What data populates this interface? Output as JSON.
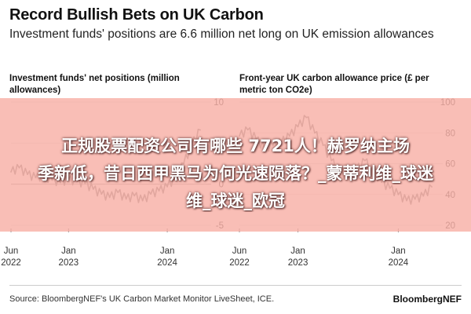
{
  "header": {
    "title": "Record Bullish Bets on UK Carbon",
    "subtitle": "Investment funds' positions are 6.6 million net long on UK emission allowances"
  },
  "chart_data": [
    {
      "type": "line",
      "title": "Investment funds' net positions (million allowances)",
      "ylim": [
        -5,
        10
      ],
      "yticks": [
        "10",
        "5",
        "0",
        "-5"
      ],
      "xticks": [
        {
          "line1": "Jun",
          "line2": "2022"
        },
        {
          "line1": "Jan",
          "line2": "2023"
        },
        {
          "line1": "Jan",
          "line2": "2024"
        }
      ],
      "color": "#7a7a7a",
      "x": [
        "2022-06",
        "2022-07",
        "2022-08",
        "2022-09",
        "2022-10",
        "2022-11",
        "2022-12",
        "2023-01",
        "2023-02",
        "2023-03",
        "2023-04",
        "2023-05",
        "2023-06",
        "2023-07",
        "2023-08",
        "2023-09",
        "2023-10",
        "2023-11",
        "2023-12",
        "2024-01",
        "2024-02",
        "2024-03",
        "2024-04",
        "2024-05"
      ],
      "values": [
        1.5,
        2.0,
        1.2,
        0.8,
        1.0,
        0.5,
        0.2,
        0.6,
        0.3,
        0.1,
        -0.6,
        -1.2,
        -1.6,
        -1.0,
        -1.8,
        -1.4,
        -2.0,
        -1.2,
        -0.8,
        -0.3,
        0.8,
        2.5,
        4.8,
        6.6
      ]
    },
    {
      "type": "line",
      "title": "Front-year UK carbon allowance price (£ per metric ton CO2e)",
      "ylim": [
        20,
        100
      ],
      "yticks": [
        "100",
        "80",
        "60",
        "40",
        "20"
      ],
      "xticks": [
        {
          "line1": "Jun",
          "line2": "2022"
        },
        {
          "line1": "Jan",
          "line2": "2023"
        },
        {
          "line1": "Jan",
          "line2": "2024"
        }
      ],
      "color": "#7a7a7a",
      "x": [
        "2022-06",
        "2022-07",
        "2022-08",
        "2022-09",
        "2022-10",
        "2022-11",
        "2022-12",
        "2023-01",
        "2023-02",
        "2023-03",
        "2023-04",
        "2023-05",
        "2023-06",
        "2023-07",
        "2023-08",
        "2023-09",
        "2023-10",
        "2023-11",
        "2023-12",
        "2024-01",
        "2024-02",
        "2024-03",
        "2024-04",
        "2024-05"
      ],
      "values": [
        78,
        82,
        76,
        70,
        72,
        74,
        78,
        84,
        90,
        80,
        72,
        62,
        55,
        50,
        56,
        62,
        55,
        48,
        44,
        40,
        36,
        37,
        39,
        45
      ]
    }
  ],
  "overlay": {
    "line1": "正规股票配资公司有哪些 7721人！赫罗纳主场",
    "line2": "季新低，昔日西甲黑马为何光速陨落？_蒙蒂利维_球迷",
    "line3": "维_球迷_欧冠"
  },
  "footer": {
    "source": "Source: BloombergNEF's UK Carbon Market Monitor LiveSheet, ICE.",
    "brand": "BloombergNEF"
  }
}
